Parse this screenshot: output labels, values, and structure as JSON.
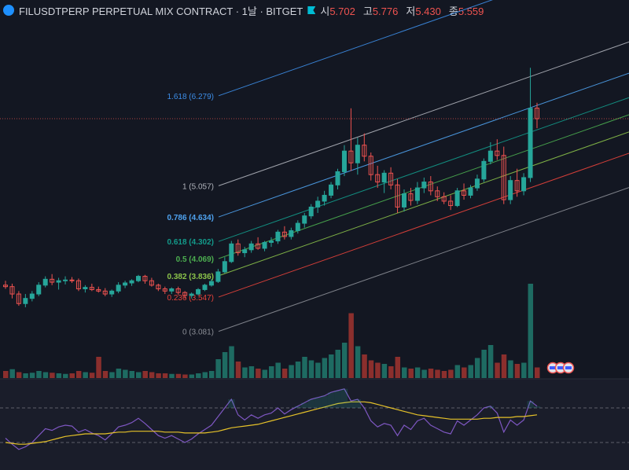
{
  "header": {
    "title": "FILUSDTPERP PERPETUAL MIX CONTRACT · 1날 · BITGET",
    "open_label": "시",
    "open": "5.702",
    "high_label": "고",
    "high": "5.776",
    "low_label": "저",
    "low": "5.430",
    "close_label": "종",
    "close": "5.559",
    "icon": "coin-logo-icon",
    "flag_icon": "flag-icon"
  },
  "colors": {
    "background": "#131722",
    "up": "#26a69a",
    "down": "#ef5350",
    "volume_up": "#1e6b62",
    "volume_down": "#8b2f2d",
    "rsi": "#7e57c2",
    "rsi_ma": "#e6c229"
  },
  "chart_data": [
    {
      "type": "candlestick",
      "title": "FILUSDTPERP PERPETUAL MIX CONTRACT · 1날 · BITGET",
      "y_range": [
        2.85,
        6.85
      ],
      "grid": false,
      "fib_channel": {
        "levels": [
          {
            "label": "0 (3.081)",
            "ratio": 0,
            "price": 3.081,
            "color": "#8a8d95"
          },
          {
            "label": "0.236 (3.547)",
            "ratio": 0.236,
            "price": 3.547,
            "color": "#e8433b"
          },
          {
            "label": "0.382 (3.836)",
            "ratio": 0.382,
            "price": 3.836,
            "color": "#8bc34a"
          },
          {
            "label": "0.5 (4.069)",
            "ratio": 0.5,
            "price": 4.069,
            "color": "#4caf50"
          },
          {
            "label": "0.618 (4.302)",
            "ratio": 0.618,
            "price": 4.302,
            "color": "#139a8a"
          },
          {
            "label": "0.786 (4.634)",
            "ratio": 0.786,
            "price": 4.634,
            "color": "#4fa3f0"
          },
          {
            "label": "1 (5.057)",
            "ratio": 1,
            "price": 5.057,
            "color": "#b0b3bb"
          },
          {
            "label": "1.618 (6.279)",
            "ratio": 1.618,
            "price": 6.279,
            "color": "#3d8ee8"
          }
        ],
        "extra_levels": [
          2.618,
          3.618
        ],
        "slope_per_bar": 0.0316,
        "anchor_bar": 45
      },
      "current_price": 5.559,
      "candles": [
        [
          3.3,
          3.36,
          3.25,
          3.28
        ],
        [
          3.28,
          3.32,
          3.12,
          3.18
        ],
        [
          3.18,
          3.22,
          3.02,
          3.05
        ],
        [
          3.05,
          3.18,
          3.0,
          3.12
        ],
        [
          3.12,
          3.22,
          3.08,
          3.18
        ],
        [
          3.18,
          3.34,
          3.15,
          3.3
        ],
        [
          3.3,
          3.42,
          3.27,
          3.38
        ],
        [
          3.38,
          3.45,
          3.3,
          3.34
        ],
        [
          3.34,
          3.4,
          3.24,
          3.36
        ],
        [
          3.36,
          3.42,
          3.31,
          3.37
        ],
        [
          3.37,
          3.41,
          3.33,
          3.36
        ],
        [
          3.36,
          3.39,
          3.22,
          3.25
        ],
        [
          3.25,
          3.3,
          3.2,
          3.27
        ],
        [
          3.27,
          3.32,
          3.22,
          3.24
        ],
        [
          3.24,
          3.28,
          3.2,
          3.22
        ],
        [
          3.22,
          3.26,
          3.15,
          3.18
        ],
        [
          3.18,
          3.24,
          3.14,
          3.22
        ],
        [
          3.22,
          3.34,
          3.19,
          3.3
        ],
        [
          3.3,
          3.36,
          3.26,
          3.33
        ],
        [
          3.33,
          3.38,
          3.29,
          3.36
        ],
        [
          3.36,
          3.44,
          3.34,
          3.42
        ],
        [
          3.42,
          3.44,
          3.32,
          3.36
        ],
        [
          3.36,
          3.4,
          3.28,
          3.3
        ],
        [
          3.3,
          3.32,
          3.22,
          3.25
        ],
        [
          3.25,
          3.28,
          3.18,
          3.22
        ],
        [
          3.22,
          3.27,
          3.18,
          3.25
        ],
        [
          3.25,
          3.28,
          3.17,
          3.2
        ],
        [
          3.2,
          3.22,
          3.12,
          3.16
        ],
        [
          3.16,
          3.2,
          3.12,
          3.18
        ],
        [
          3.18,
          3.26,
          3.16,
          3.24
        ],
        [
          3.24,
          3.32,
          3.22,
          3.3
        ],
        [
          3.3,
          3.38,
          3.28,
          3.35
        ],
        [
          3.35,
          3.52,
          3.33,
          3.48
        ],
        [
          3.48,
          3.68,
          3.46,
          3.62
        ],
        [
          3.62,
          3.9,
          3.6,
          3.86
        ],
        [
          3.86,
          3.92,
          3.7,
          3.74
        ],
        [
          3.74,
          3.82,
          3.68,
          3.78
        ],
        [
          3.78,
          3.9,
          3.74,
          3.86
        ],
        [
          3.86,
          3.95,
          3.78,
          3.8
        ],
        [
          3.8,
          3.9,
          3.76,
          3.88
        ],
        [
          3.88,
          3.95,
          3.82,
          3.9
        ],
        [
          3.9,
          4.05,
          3.86,
          4.02
        ],
        [
          4.02,
          4.1,
          3.92,
          3.96
        ],
        [
          3.96,
          4.08,
          3.92,
          4.04
        ],
        [
          4.04,
          4.18,
          4.0,
          4.14
        ],
        [
          4.14,
          4.28,
          4.08,
          4.24
        ],
        [
          4.24,
          4.4,
          4.2,
          4.36
        ],
        [
          4.36,
          4.5,
          4.28,
          4.44
        ],
        [
          4.44,
          4.58,
          4.38,
          4.52
        ],
        [
          4.52,
          4.7,
          4.48,
          4.66
        ],
        [
          4.66,
          4.88,
          4.6,
          4.84
        ],
        [
          4.84,
          5.2,
          4.78,
          5.12
        ],
        [
          5.12,
          5.7,
          4.85,
          4.96
        ],
        [
          4.96,
          5.3,
          4.8,
          5.2
        ],
        [
          5.2,
          5.36,
          4.98,
          5.05
        ],
        [
          5.05,
          5.1,
          4.72,
          4.8
        ],
        [
          4.8,
          4.92,
          4.62,
          4.7
        ],
        [
          4.7,
          4.86,
          4.55,
          4.82
        ],
        [
          4.82,
          4.9,
          4.6,
          4.66
        ],
        [
          4.66,
          4.74,
          4.28,
          4.36
        ],
        [
          4.36,
          4.6,
          4.3,
          4.54
        ],
        [
          4.54,
          4.62,
          4.38,
          4.45
        ],
        [
          4.45,
          4.7,
          4.4,
          4.62
        ],
        [
          4.62,
          4.76,
          4.55,
          4.7
        ],
        [
          4.7,
          4.78,
          4.52,
          4.58
        ],
        [
          4.58,
          4.64,
          4.44,
          4.5
        ],
        [
          4.5,
          4.56,
          4.4,
          4.44
        ],
        [
          4.44,
          4.52,
          4.32,
          4.38
        ],
        [
          4.38,
          4.62,
          4.36,
          4.58
        ],
        [
          4.58,
          4.68,
          4.46,
          4.52
        ],
        [
          4.52,
          4.66,
          4.48,
          4.62
        ],
        [
          4.62,
          4.8,
          4.58,
          4.74
        ],
        [
          4.74,
          5.02,
          4.7,
          4.98
        ],
        [
          4.98,
          5.24,
          4.94,
          5.12
        ],
        [
          5.12,
          5.28,
          5.0,
          5.06
        ],
        [
          5.06,
          5.18,
          4.4,
          4.46
        ],
        [
          4.46,
          4.78,
          4.4,
          4.72
        ],
        [
          4.72,
          4.88,
          4.5,
          4.58
        ],
        [
          4.58,
          4.82,
          4.52,
          4.76
        ],
        [
          4.76,
          6.25,
          4.7,
          5.7
        ],
        [
          5.702,
          5.776,
          5.43,
          5.559
        ]
      ],
      "volume": [
        {
          "value": 12,
          "dir": "down"
        },
        {
          "value": 15,
          "dir": "up"
        },
        {
          "value": 10,
          "dir": "down"
        },
        {
          "value": 8,
          "dir": "up"
        },
        {
          "value": 9,
          "dir": "up"
        },
        {
          "value": 12,
          "dir": "up"
        },
        {
          "value": 10,
          "dir": "up"
        },
        {
          "value": 9,
          "dir": "down"
        },
        {
          "value": 8,
          "dir": "up"
        },
        {
          "value": 7,
          "dir": "up"
        },
        {
          "value": 8,
          "dir": "down"
        },
        {
          "value": 12,
          "dir": "down"
        },
        {
          "value": 10,
          "dir": "up"
        },
        {
          "value": 9,
          "dir": "down"
        },
        {
          "value": 36,
          "dir": "down"
        },
        {
          "value": 12,
          "dir": "down"
        },
        {
          "value": 10,
          "dir": "up"
        },
        {
          "value": 16,
          "dir": "up"
        },
        {
          "value": 14,
          "dir": "up"
        },
        {
          "value": 12,
          "dir": "up"
        },
        {
          "value": 10,
          "dir": "up"
        },
        {
          "value": 12,
          "dir": "down"
        },
        {
          "value": 10,
          "dir": "down"
        },
        {
          "value": 8,
          "dir": "down"
        },
        {
          "value": 8,
          "dir": "down"
        },
        {
          "value": 7,
          "dir": "up"
        },
        {
          "value": 7,
          "dir": "down"
        },
        {
          "value": 6,
          "dir": "down"
        },
        {
          "value": 6,
          "dir": "up"
        },
        {
          "value": 8,
          "dir": "up"
        },
        {
          "value": 10,
          "dir": "up"
        },
        {
          "value": 12,
          "dir": "up"
        },
        {
          "value": 32,
          "dir": "up"
        },
        {
          "value": 44,
          "dir": "up"
        },
        {
          "value": 54,
          "dir": "up"
        },
        {
          "value": 28,
          "dir": "down"
        },
        {
          "value": 18,
          "dir": "up"
        },
        {
          "value": 20,
          "dir": "up"
        },
        {
          "value": 16,
          "dir": "down"
        },
        {
          "value": 14,
          "dir": "up"
        },
        {
          "value": 20,
          "dir": "up"
        },
        {
          "value": 26,
          "dir": "up"
        },
        {
          "value": 16,
          "dir": "down"
        },
        {
          "value": 22,
          "dir": "up"
        },
        {
          "value": 28,
          "dir": "up"
        },
        {
          "value": 36,
          "dir": "up"
        },
        {
          "value": 30,
          "dir": "up"
        },
        {
          "value": 26,
          "dir": "up"
        },
        {
          "value": 34,
          "dir": "up"
        },
        {
          "value": 40,
          "dir": "up"
        },
        {
          "value": 48,
          "dir": "up"
        },
        {
          "value": 60,
          "dir": "up"
        },
        {
          "value": 110,
          "dir": "down"
        },
        {
          "value": 54,
          "dir": "up"
        },
        {
          "value": 40,
          "dir": "down"
        },
        {
          "value": 30,
          "dir": "down"
        },
        {
          "value": 26,
          "dir": "down"
        },
        {
          "value": 24,
          "dir": "up"
        },
        {
          "value": 20,
          "dir": "down"
        },
        {
          "value": 36,
          "dir": "down"
        },
        {
          "value": 18,
          "dir": "up"
        },
        {
          "value": 16,
          "dir": "down"
        },
        {
          "value": 18,
          "dir": "up"
        },
        {
          "value": 14,
          "dir": "up"
        },
        {
          "value": 16,
          "dir": "down"
        },
        {
          "value": 14,
          "dir": "down"
        },
        {
          "value": 12,
          "dir": "down"
        },
        {
          "value": 14,
          "dir": "down"
        },
        {
          "value": 22,
          "dir": "up"
        },
        {
          "value": 18,
          "dir": "down"
        },
        {
          "value": 22,
          "dir": "up"
        },
        {
          "value": 34,
          "dir": "up"
        },
        {
          "value": 48,
          "dir": "up"
        },
        {
          "value": 56,
          "dir": "up"
        },
        {
          "value": 26,
          "dir": "down"
        },
        {
          "value": 40,
          "dir": "down"
        },
        {
          "value": 30,
          "dir": "up"
        },
        {
          "value": 24,
          "dir": "down"
        },
        {
          "value": 26,
          "dir": "up"
        },
        {
          "value": 160,
          "dir": "up"
        },
        {
          "value": 18,
          "dir": "down"
        }
      ],
      "rsi_range": [
        0,
        100
      ],
      "rsi_bands": [
        70,
        30
      ],
      "rsi": [
        35,
        28,
        22,
        25,
        30,
        38,
        46,
        44,
        48,
        50,
        49,
        42,
        45,
        41,
        38,
        33,
        40,
        48,
        50,
        53,
        58,
        52,
        45,
        38,
        35,
        38,
        34,
        30,
        34,
        40,
        45,
        50,
        60,
        70,
        80,
        62,
        56,
        62,
        58,
        62,
        64,
        70,
        63,
        68,
        72,
        76,
        80,
        82,
        84,
        88,
        90,
        92,
        78,
        80,
        70,
        55,
        48,
        52,
        50,
        38,
        50,
        45,
        55,
        58,
        50,
        46,
        42,
        40,
        55,
        50,
        56,
        62,
        70,
        72,
        64,
        42,
        56,
        50,
        56,
        78,
        72
      ],
      "rsi_ma": [
        30,
        29,
        28,
        28,
        29,
        30,
        31,
        33,
        35,
        37,
        38,
        39,
        40,
        40,
        40,
        40,
        41,
        42,
        42,
        43,
        43,
        43,
        43,
        43,
        42,
        42,
        42,
        41,
        41,
        41,
        41,
        42,
        43,
        45,
        47,
        48,
        49,
        50,
        51,
        53,
        55,
        57,
        59,
        61,
        63,
        65,
        67,
        69,
        71,
        73,
        75,
        76,
        77,
        77,
        77,
        76,
        74,
        72,
        70,
        68,
        66,
        64,
        62,
        61,
        60,
        59,
        58,
        57,
        57,
        57,
        57,
        57,
        58,
        58,
        59,
        59,
        59,
        60,
        60,
        61,
        62
      ]
    }
  ]
}
